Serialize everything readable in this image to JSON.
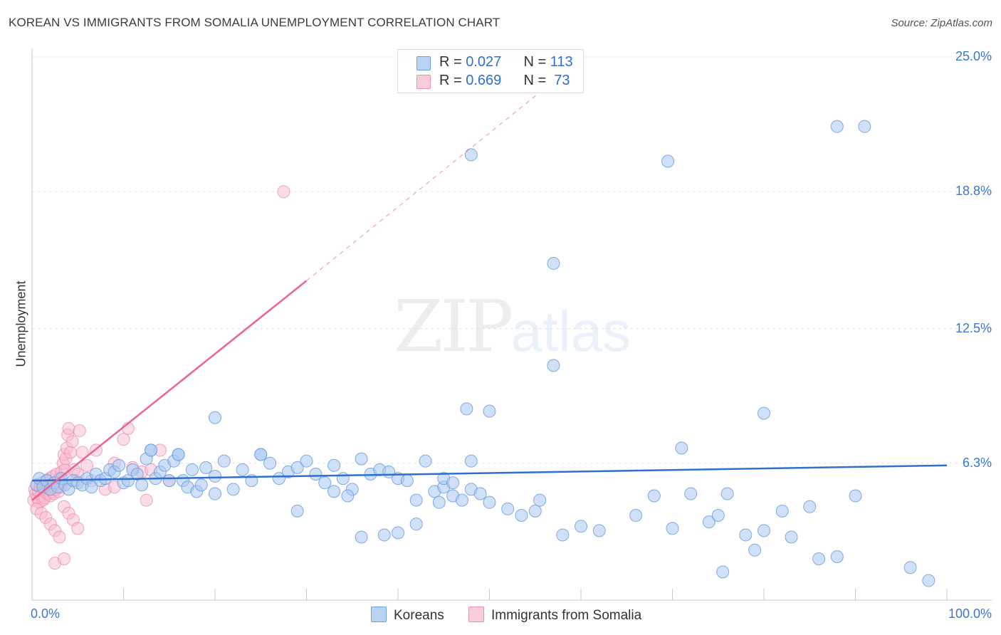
{
  "header": {
    "title": "KOREAN VS IMMIGRANTS FROM SOMALIA UNEMPLOYMENT CORRELATION CHART",
    "source": "Source: ZipAtlas.com"
  },
  "watermark": {
    "zip": "ZIP",
    "atlas": "atlas"
  },
  "legend": {
    "koreans": {
      "r_label": "R = ",
      "r_value": "0.027",
      "n_label": "N = ",
      "n_value": "113"
    },
    "somalia": {
      "r_label": "R = ",
      "r_value": "0.669",
      "n_label": "N = ",
      "n_value": " 73"
    }
  },
  "colors": {
    "koreans_fill": "#a9c8f0",
    "koreans_stroke": "#6b9ee0",
    "koreans_line": "#2f6fcf",
    "somalia_fill": "#f7bcd0",
    "somalia_stroke": "#ee8fb0",
    "somalia_line": "#e8638f",
    "grid": "#e2e2e2",
    "tick_text": "#3a78d0"
  },
  "chart_data": {
    "type": "scatter",
    "title": "KOREAN VS IMMIGRANTS FROM SOMALIA UNEMPLOYMENT CORRELATION CHART",
    "xlabel": "",
    "ylabel": "Unemployment",
    "xlim": [
      0,
      100
    ],
    "ylim": [
      0,
      25.0
    ],
    "x_tick_labels": [
      "0.0%",
      "100.0%"
    ],
    "y_ticks": [
      6.3,
      12.5,
      18.8,
      25.0
    ],
    "y_tick_labels": [
      "6.3%",
      "12.5%",
      "18.8%",
      "25.0%"
    ],
    "legend_position": "top-center",
    "series": [
      {
        "name": "Koreans",
        "r": 0.027,
        "n": 113,
        "trend": {
          "x": [
            0,
            100
          ],
          "y": [
            5.5,
            6.2
          ],
          "dashed_extension": false
        },
        "points": [
          [
            0.5,
            5.3
          ],
          [
            0.8,
            5.6
          ],
          [
            1.2,
            5.2
          ],
          [
            1.6,
            5.5
          ],
          [
            2.0,
            5.1
          ],
          [
            2.4,
            5.4
          ],
          [
            2.8,
            5.2
          ],
          [
            3.2,
            5.6
          ],
          [
            3.6,
            5.3
          ],
          [
            4.0,
            5.1
          ],
          [
            4.5,
            5.5
          ],
          [
            5.0,
            5.4
          ],
          [
            5.5,
            5.3
          ],
          [
            6.0,
            5.6
          ],
          [
            6.5,
            5.2
          ],
          [
            7.0,
            5.8
          ],
          [
            7.5,
            5.5
          ],
          [
            8.0,
            5.6
          ],
          [
            8.5,
            6.0
          ],
          [
            9.0,
            5.9
          ],
          [
            9.5,
            6.2
          ],
          [
            10.0,
            5.4
          ],
          [
            10.5,
            5.5
          ],
          [
            11.0,
            6.0
          ],
          [
            11.5,
            5.8
          ],
          [
            12.0,
            5.3
          ],
          [
            12.5,
            6.5
          ],
          [
            13.0,
            6.9
          ],
          [
            13.5,
            5.6
          ],
          [
            14.0,
            5.9
          ],
          [
            14.5,
            6.2
          ],
          [
            15.0,
            5.5
          ],
          [
            15.5,
            6.4
          ],
          [
            16.0,
            6.7
          ],
          [
            16.5,
            5.5
          ],
          [
            17.0,
            5.2
          ],
          [
            17.5,
            6.0
          ],
          [
            18.0,
            5.0
          ],
          [
            18.5,
            5.3
          ],
          [
            19.0,
            6.1
          ],
          [
            20.0,
            5.7
          ],
          [
            21.0,
            6.4
          ],
          [
            22.0,
            5.1
          ],
          [
            23.0,
            6.0
          ],
          [
            24.0,
            5.5
          ],
          [
            25.0,
            6.7
          ],
          [
            26.0,
            6.3
          ],
          [
            27.0,
            5.6
          ],
          [
            28.0,
            5.9
          ],
          [
            29.0,
            6.1
          ],
          [
            30.0,
            6.4
          ],
          [
            31.0,
            5.8
          ],
          [
            32.0,
            5.4
          ],
          [
            33.0,
            6.2
          ],
          [
            34.0,
            5.6
          ],
          [
            35.0,
            5.1
          ],
          [
            36.0,
            6.5
          ],
          [
            37.0,
            5.8
          ],
          [
            38.0,
            6.0
          ],
          [
            39.0,
            5.9
          ],
          [
            40.0,
            5.6
          ],
          [
            41.0,
            5.5
          ],
          [
            42.0,
            4.6
          ],
          [
            43.0,
            6.4
          ],
          [
            44.0,
            5.0
          ],
          [
            45.0,
            5.2
          ],
          [
            46.0,
            4.8
          ],
          [
            47.0,
            4.6
          ],
          [
            48.0,
            5.1
          ],
          [
            49.0,
            4.9
          ],
          [
            50.0,
            4.5
          ],
          [
            13.0,
            6.9
          ],
          [
            16.0,
            6.7
          ],
          [
            20.0,
            4.9
          ],
          [
            25.0,
            6.7
          ],
          [
            29.0,
            4.1
          ],
          [
            33.0,
            5.0
          ],
          [
            34.5,
            4.8
          ],
          [
            36.0,
            2.9
          ],
          [
            38.5,
            3.0
          ],
          [
            40.0,
            3.1
          ],
          [
            42.0,
            3.5
          ],
          [
            44.5,
            4.5
          ],
          [
            45.0,
            5.6
          ],
          [
            46.0,
            5.4
          ],
          [
            48.0,
            6.4
          ],
          [
            52.0,
            4.2
          ],
          [
            53.5,
            3.9
          ],
          [
            55.0,
            4.1
          ],
          [
            55.5,
            4.6
          ],
          [
            58.0,
            3.0
          ],
          [
            60.0,
            3.4
          ],
          [
            62.0,
            3.2
          ],
          [
            66.0,
            3.9
          ],
          [
            68.0,
            4.8
          ],
          [
            70.0,
            3.3
          ],
          [
            72.0,
            4.9
          ],
          [
            74.0,
            3.6
          ],
          [
            75.0,
            3.9
          ],
          [
            76.0,
            4.9
          ],
          [
            78.0,
            3.0
          ],
          [
            79.0,
            2.3
          ],
          [
            80.0,
            3.2
          ],
          [
            82.0,
            4.1
          ],
          [
            83.0,
            2.9
          ],
          [
            85.0,
            4.3
          ],
          [
            86.0,
            1.9
          ],
          [
            88.0,
            2.0
          ],
          [
            90.0,
            4.8
          ],
          [
            96.0,
            1.5
          ],
          [
            20.0,
            8.4
          ],
          [
            47.5,
            8.8
          ],
          [
            50.0,
            8.7
          ],
          [
            57.0,
            10.8
          ],
          [
            71.0,
            7.0
          ],
          [
            80.0,
            8.6
          ],
          [
            57.0,
            15.5
          ],
          [
            48.0,
            20.5
          ],
          [
            69.5,
            20.2
          ],
          [
            88.0,
            21.8
          ],
          [
            91.0,
            21.8
          ],
          [
            98.0,
            0.9
          ],
          [
            75.5,
            1.3
          ]
        ]
      },
      {
        "name": "Immigrants from Somalia",
        "r": 0.669,
        "n": 73,
        "trend": {
          "x": [
            0,
            30.0
          ],
          "y": [
            4.6,
            14.7
          ],
          "dashed_to": [
            60.0,
            24.9
          ]
        },
        "points": [
          [
            0.2,
            4.6
          ],
          [
            0.3,
            5.1
          ],
          [
            0.4,
            4.9
          ],
          [
            0.5,
            5.3
          ],
          [
            0.6,
            4.7
          ],
          [
            0.7,
            5.0
          ],
          [
            0.8,
            4.5
          ],
          [
            0.9,
            5.2
          ],
          [
            1.0,
            4.8
          ],
          [
            1.1,
            5.4
          ],
          [
            1.2,
            4.6
          ],
          [
            1.3,
            5.0
          ],
          [
            1.4,
            4.7
          ],
          [
            1.5,
            5.1
          ],
          [
            1.6,
            5.5
          ],
          [
            1.7,
            4.9
          ],
          [
            1.8,
            5.2
          ],
          [
            1.9,
            5.6
          ],
          [
            2.0,
            4.8
          ],
          [
            2.1,
            5.3
          ],
          [
            2.2,
            5.0
          ],
          [
            2.3,
            5.7
          ],
          [
            2.4,
            4.9
          ],
          [
            2.5,
            5.4
          ],
          [
            2.6,
            5.1
          ],
          [
            2.7,
            5.8
          ],
          [
            2.8,
            5.3
          ],
          [
            2.9,
            5.0
          ],
          [
            3.0,
            5.6
          ],
          [
            3.1,
            5.2
          ],
          [
            3.2,
            5.9
          ],
          [
            3.3,
            5.4
          ],
          [
            3.4,
            6.3
          ],
          [
            3.5,
            6.7
          ],
          [
            3.6,
            6.0
          ],
          [
            3.7,
            6.5
          ],
          [
            3.8,
            7.0
          ],
          [
            3.9,
            7.6
          ],
          [
            4.0,
            7.9
          ],
          [
            4.2,
            6.8
          ],
          [
            4.4,
            7.3
          ],
          [
            4.6,
            6.0
          ],
          [
            4.8,
            5.5
          ],
          [
            5.0,
            5.8
          ],
          [
            5.2,
            7.8
          ],
          [
            5.5,
            6.8
          ],
          [
            6.0,
            6.2
          ],
          [
            6.5,
            5.5
          ],
          [
            7.0,
            6.9
          ],
          [
            8.0,
            5.1
          ],
          [
            9.0,
            6.3
          ],
          [
            10.0,
            7.4
          ],
          [
            11.0,
            6.1
          ],
          [
            12.0,
            5.9
          ],
          [
            13.0,
            6.0
          ],
          [
            14.0,
            6.9
          ],
          [
            15.0,
            5.5
          ],
          [
            0.5,
            4.2
          ],
          [
            1.0,
            4.0
          ],
          [
            1.5,
            3.8
          ],
          [
            2.0,
            3.5
          ],
          [
            2.5,
            3.2
          ],
          [
            3.0,
            2.9
          ],
          [
            3.5,
            4.3
          ],
          [
            4.0,
            4.0
          ],
          [
            4.5,
            3.7
          ],
          [
            5.0,
            3.3
          ],
          [
            2.5,
            1.7
          ],
          [
            3.5,
            1.9
          ],
          [
            10.5,
            7.9
          ],
          [
            9.0,
            5.2
          ],
          [
            12.5,
            4.6
          ],
          [
            27.5,
            18.8
          ]
        ]
      }
    ]
  },
  "bottom_legend": {
    "koreans": "Koreans",
    "somalia": "Immigrants from Somalia"
  },
  "axes": {
    "x_min_label": "0.0%",
    "x_max_label": "100.0%",
    "y_label": "Unemployment"
  }
}
